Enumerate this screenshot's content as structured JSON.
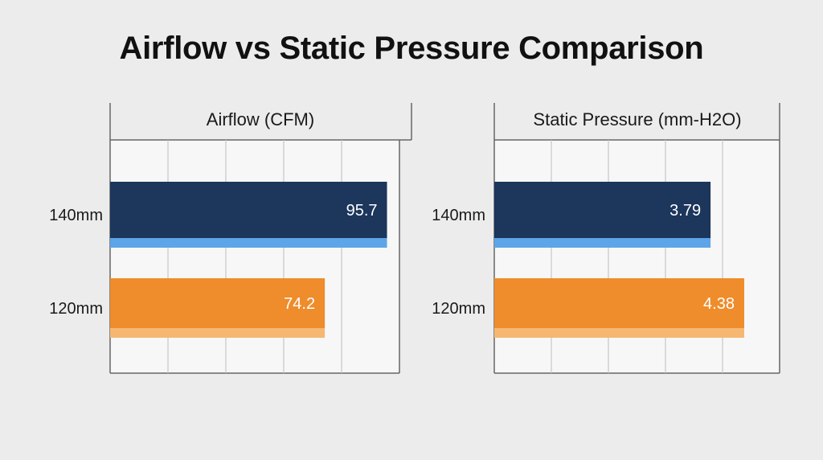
{
  "title": "Airflow vs Static Pressure Comparison",
  "colors": {
    "background": "#ececec",
    "plot_background": "#f7f7f7",
    "bar_140mm": "#1c365c",
    "bar_140mm_accent": "#5da4e8",
    "bar_120mm": "#ef8c2b",
    "bar_120mm_accent": "#f6b772",
    "grid": "#c8c8c8",
    "axis": "#666666"
  },
  "chart_data": [
    {
      "type": "bar",
      "orientation": "horizontal",
      "title": "Airflow (CFM)",
      "categories": [
        "140mm",
        "120mm"
      ],
      "values": [
        95.7,
        74.2
      ],
      "value_labels": [
        "95.7",
        "74.2"
      ],
      "xlim": [
        0,
        100
      ],
      "grid": true
    },
    {
      "type": "bar",
      "orientation": "horizontal",
      "title": "Static Pressure (mm-H2O)",
      "categories": [
        "140mm",
        "120mm"
      ],
      "values": [
        3.79,
        4.38
      ],
      "value_labels": [
        "3.79",
        "4.38"
      ],
      "xlim": [
        0,
        5
      ],
      "grid": true
    }
  ]
}
